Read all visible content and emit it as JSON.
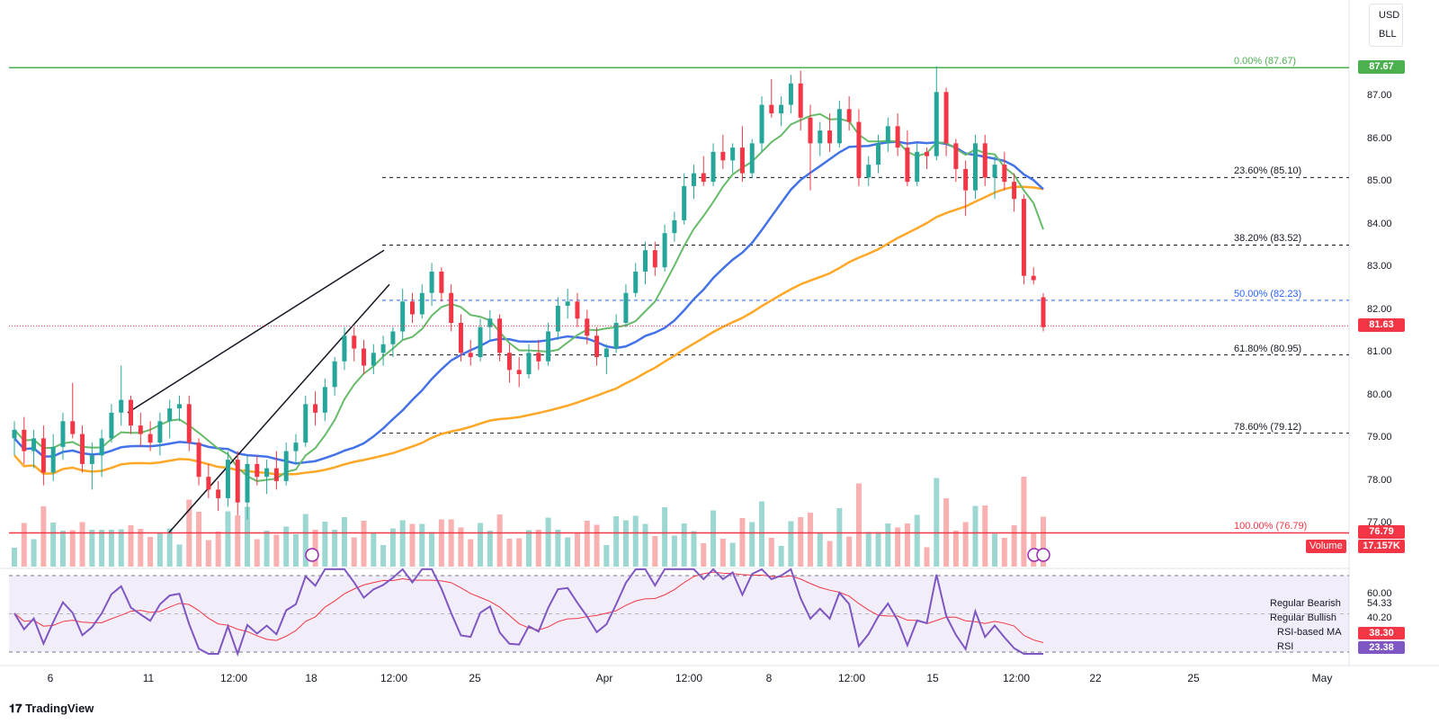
{
  "units": {
    "currency": "USD",
    "unit": "BLL"
  },
  "chart_data": {
    "type": "candlestick",
    "ylim": [
      76.0,
      88.2
    ],
    "yticks": [
      "87.00",
      "86.00",
      "85.00",
      "84.00",
      "83.00",
      "82.00",
      "81.00",
      "80.00",
      "79.00",
      "78.00",
      "77.00"
    ],
    "xticks": [
      "6",
      "11",
      "12:00",
      "18",
      "12:00",
      "25",
      "Apr",
      "12:00",
      "8",
      "12:00",
      "15",
      "12:00",
      "22",
      "25",
      "May"
    ],
    "candles": [
      [
        79.0,
        79.4,
        78.6,
        79.2
      ],
      [
        79.2,
        79.5,
        78.4,
        78.7
      ],
      [
        78.7,
        79.2,
        78.3,
        79.0
      ],
      [
        79.0,
        79.3,
        77.9,
        78.2
      ],
      [
        78.2,
        79.1,
        78.0,
        78.8
      ],
      [
        78.8,
        79.6,
        78.5,
        79.4
      ],
      [
        79.4,
        80.3,
        79.0,
        79.1
      ],
      [
        79.1,
        79.3,
        78.2,
        78.4
      ],
      [
        78.4,
        78.9,
        77.8,
        78.6
      ],
      [
        78.6,
        79.2,
        78.1,
        79.0
      ],
      [
        79.0,
        79.8,
        78.9,
        79.6
      ],
      [
        79.6,
        80.7,
        79.3,
        79.9
      ],
      [
        79.9,
        80.0,
        79.1,
        79.3
      ],
      [
        79.3,
        79.6,
        78.8,
        79.1
      ],
      [
        79.1,
        79.4,
        78.7,
        78.9
      ],
      [
        78.9,
        79.6,
        78.6,
        79.4
      ],
      [
        79.4,
        79.9,
        79.0,
        79.7
      ],
      [
        79.7,
        80.0,
        79.4,
        79.8
      ],
      [
        79.8,
        80.0,
        78.7,
        78.9
      ],
      [
        78.9,
        79.0,
        77.9,
        78.1
      ],
      [
        78.1,
        78.4,
        77.6,
        77.8
      ],
      [
        77.8,
        78.0,
        77.3,
        77.6
      ],
      [
        77.6,
        78.7,
        77.4,
        78.5
      ],
      [
        78.5,
        78.7,
        77.2,
        77.5
      ],
      [
        77.5,
        78.6,
        77.1,
        78.4
      ],
      [
        78.4,
        78.6,
        77.9,
        78.1
      ],
      [
        78.1,
        78.5,
        77.7,
        78.3
      ],
      [
        78.3,
        78.7,
        77.8,
        78.0
      ],
      [
        78.0,
        78.9,
        77.9,
        78.7
      ],
      [
        78.7,
        79.1,
        78.4,
        78.9
      ],
      [
        78.9,
        80.0,
        78.8,
        79.8
      ],
      [
        79.8,
        80.1,
        79.3,
        79.6
      ],
      [
        79.6,
        80.4,
        79.4,
        80.2
      ],
      [
        80.2,
        80.9,
        80.0,
        80.8
      ],
      [
        80.8,
        81.6,
        80.6,
        81.4
      ],
      [
        81.4,
        81.6,
        80.8,
        81.1
      ],
      [
        81.1,
        81.3,
        80.5,
        80.7
      ],
      [
        80.7,
        81.2,
        80.5,
        81.0
      ],
      [
        81.0,
        81.4,
        80.7,
        81.2
      ],
      [
        81.2,
        81.6,
        80.9,
        81.5
      ],
      [
        81.5,
        82.5,
        81.3,
        82.2
      ],
      [
        82.2,
        82.4,
        81.7,
        81.9
      ],
      [
        81.9,
        82.6,
        81.8,
        82.4
      ],
      [
        82.4,
        83.1,
        82.1,
        82.9
      ],
      [
        82.9,
        83.0,
        82.2,
        82.4
      ],
      [
        82.4,
        82.6,
        81.5,
        81.7
      ],
      [
        81.7,
        81.9,
        80.8,
        81.0
      ],
      [
        81.0,
        81.3,
        80.7,
        80.9
      ],
      [
        80.9,
        81.8,
        80.8,
        81.6
      ],
      [
        81.6,
        82.0,
        81.3,
        81.8
      ],
      [
        81.8,
        81.9,
        80.8,
        81.0
      ],
      [
        81.0,
        81.2,
        80.3,
        80.6
      ],
      [
        80.6,
        80.9,
        80.2,
        80.5
      ],
      [
        80.5,
        81.2,
        80.4,
        81.0
      ],
      [
        81.0,
        81.3,
        80.6,
        80.8
      ],
      [
        80.8,
        81.7,
        80.7,
        81.5
      ],
      [
        81.5,
        82.3,
        81.3,
        82.1
      ],
      [
        82.1,
        82.5,
        81.8,
        82.2
      ],
      [
        82.2,
        82.4,
        81.6,
        81.8
      ],
      [
        81.8,
        82.0,
        81.2,
        81.4
      ],
      [
        81.4,
        81.6,
        80.7,
        80.9
      ],
      [
        80.9,
        81.2,
        80.5,
        81.1
      ],
      [
        81.1,
        81.9,
        81.0,
        81.7
      ],
      [
        81.7,
        82.6,
        81.6,
        82.4
      ],
      [
        82.4,
        83.1,
        82.3,
        82.9
      ],
      [
        82.9,
        83.6,
        82.6,
        83.4
      ],
      [
        83.4,
        83.6,
        82.8,
        83.0
      ],
      [
        83.0,
        84.0,
        82.9,
        83.8
      ],
      [
        83.8,
        84.3,
        83.6,
        84.1
      ],
      [
        84.1,
        85.2,
        84.0,
        84.9
      ],
      [
        84.9,
        85.4,
        84.6,
        85.2
      ],
      [
        85.2,
        85.6,
        84.9,
        85.0
      ],
      [
        85.0,
        85.9,
        84.9,
        85.7
      ],
      [
        85.7,
        86.1,
        85.3,
        85.5
      ],
      [
        85.5,
        85.9,
        85.2,
        85.8
      ],
      [
        85.8,
        86.3,
        85.0,
        85.2
      ],
      [
        85.2,
        86.0,
        85.1,
        85.9
      ],
      [
        85.9,
        87.0,
        85.7,
        86.8
      ],
      [
        86.8,
        87.4,
        86.5,
        86.6
      ],
      [
        86.6,
        87.0,
        86.3,
        86.8
      ],
      [
        86.8,
        87.5,
        86.6,
        87.3
      ],
      [
        87.3,
        87.6,
        86.2,
        86.5
      ],
      [
        86.5,
        86.8,
        84.8,
        85.9
      ],
      [
        85.9,
        86.4,
        85.6,
        86.2
      ],
      [
        86.2,
        86.6,
        85.7,
        85.9
      ],
      [
        85.9,
        86.9,
        85.8,
        86.7
      ],
      [
        86.7,
        87.0,
        86.2,
        86.4
      ],
      [
        86.4,
        86.7,
        84.9,
        85.1
      ],
      [
        85.1,
        85.6,
        84.9,
        85.4
      ],
      [
        85.4,
        86.1,
        85.2,
        85.9
      ],
      [
        85.9,
        86.5,
        85.7,
        86.3
      ],
      [
        86.3,
        86.6,
        85.6,
        85.8
      ],
      [
        85.8,
        86.2,
        84.9,
        85.0
      ],
      [
        85.0,
        85.9,
        84.9,
        85.7
      ],
      [
        85.7,
        85.8,
        85.3,
        85.6
      ],
      [
        85.6,
        87.7,
        85.5,
        87.1
      ],
      [
        87.1,
        87.2,
        85.6,
        85.9
      ],
      [
        85.9,
        86.0,
        85.0,
        85.3
      ],
      [
        85.3,
        85.5,
        84.2,
        84.8
      ],
      [
        84.8,
        86.1,
        84.6,
        85.9
      ],
      [
        85.9,
        86.1,
        84.9,
        85.1
      ],
      [
        85.1,
        85.6,
        84.6,
        85.4
      ],
      [
        85.4,
        85.7,
        84.8,
        85.0
      ],
      [
        85.0,
        85.2,
        84.3,
        84.6
      ],
      [
        84.6,
        84.7,
        82.6,
        82.8
      ],
      [
        82.8,
        83.0,
        82.6,
        82.7
      ],
      [
        82.3,
        82.4,
        81.5,
        81.6
      ]
    ],
    "volume_label": "Volume",
    "volume_value": "17.157K",
    "fib_levels": [
      {
        "label": "0.00% (87.67)",
        "price": 87.67,
        "color": "#4caf50",
        "tag": "87.67"
      },
      {
        "label": "23.60% (85.10)",
        "price": 85.1,
        "color": "#131722"
      },
      {
        "label": "38.20% (83.52)",
        "price": 83.52,
        "color": "#131722"
      },
      {
        "label": "50.00% (82.23)",
        "price": 82.23,
        "color": "#2962ff"
      },
      {
        "label": "61.80% (80.95)",
        "price": 80.95,
        "color": "#131722"
      },
      {
        "label": "78.60% (79.12)",
        "price": 79.12,
        "color": "#131722"
      },
      {
        "label": "100.00% (76.79)",
        "price": 76.79,
        "color": "#f23645",
        "tag": "76.79"
      }
    ],
    "last_price": "81.63",
    "rsi": {
      "yticks": [
        "60.00"
      ],
      "labels": [
        {
          "name": "Regular Bearish",
          "value": "54.33"
        },
        {
          "name": "Regular Bullish",
          "value": "40.20"
        },
        {
          "name": "RSI-based MA",
          "value": "38.30"
        },
        {
          "name": "RSI",
          "value": "23.38"
        }
      ]
    }
  },
  "branding": {
    "logo_text": "TradingView"
  }
}
